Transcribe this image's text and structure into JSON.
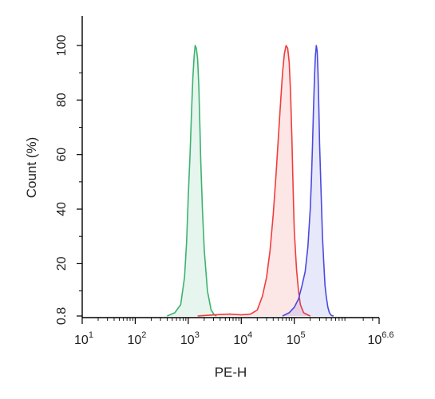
{
  "chart_data": {
    "type": "area",
    "title": "",
    "xlabel": "PE-H",
    "ylabel": "Count (%)",
    "x_scale": "log10",
    "xlim": [
      10,
      3981071
    ],
    "ylim": [
      0.8,
      100
    ],
    "x_ticks": [
      {
        "base": "10",
        "exp": "1",
        "value": 10
      },
      {
        "base": "10",
        "exp": "2",
        "value": 100
      },
      {
        "base": "10",
        "exp": "3",
        "value": 1000
      },
      {
        "base": "10",
        "exp": "4",
        "value": 10000
      },
      {
        "base": "10",
        "exp": "5",
        "value": 100000
      },
      {
        "base": "10",
        "exp": "6.6",
        "value": 3981071
      }
    ],
    "y_ticks": [
      {
        "label": "0.8",
        "value": 0.8
      },
      {
        "label": "20",
        "value": 20
      },
      {
        "label": "40",
        "value": 40
      },
      {
        "label": "60",
        "value": 60
      },
      {
        "label": "80",
        "value": 80
      },
      {
        "label": "100",
        "value": 100
      }
    ],
    "grid": false,
    "legend": "none",
    "series": [
      {
        "color": "#3cb371",
        "x": [
          400,
          560,
          720,
          850,
          930,
          1000,
          1080,
          1150,
          1220,
          1290,
          1350,
          1420,
          1500,
          1580,
          1650,
          1720,
          1850,
          2000,
          2300,
          2700,
          3100,
          3400
        ],
        "values": [
          0.8,
          2,
          5,
          15,
          28,
          45,
          60,
          75,
          88,
          96,
          100,
          99,
          95,
          85,
          72,
          58,
          40,
          25,
          10,
          3,
          1.2,
          0.8
        ]
      },
      {
        "color": "#f03c3c",
        "x": [
          1500,
          3000,
          6000,
          10000,
          15000,
          20000,
          25000,
          30000,
          35000,
          40000,
          45000,
          50000,
          55000,
          60000,
          65000,
          70000,
          75000,
          80000,
          85000,
          90000,
          95000,
          100000,
          110000,
          120000,
          130000,
          150000,
          180000,
          200000
        ],
        "values": [
          0.8,
          1.2,
          1.5,
          1.2,
          1.5,
          3,
          8,
          15,
          25,
          38,
          52,
          66,
          79,
          90,
          97,
          100,
          99,
          94,
          83,
          66,
          48,
          32,
          18,
          10,
          5,
          2,
          1.2,
          0.8
        ]
      },
      {
        "color": "#4a4adf",
        "x": [
          60000,
          80000,
          100000,
          120000,
          140000,
          160000,
          180000,
          200000,
          210000,
          220000,
          230000,
          240000,
          250000,
          260000,
          270000,
          280000,
          290000,
          300000,
          320000,
          340000,
          360000,
          380000,
          400000,
          430000,
          460000,
          500000,
          550000
        ],
        "values": [
          0.8,
          2,
          4,
          7,
          12,
          17,
          26,
          40,
          50,
          63,
          76,
          88,
          96,
          100,
          98,
          90,
          78,
          64,
          46,
          30,
          20,
          12,
          8,
          4,
          2,
          1,
          0.8
        ]
      }
    ]
  }
}
